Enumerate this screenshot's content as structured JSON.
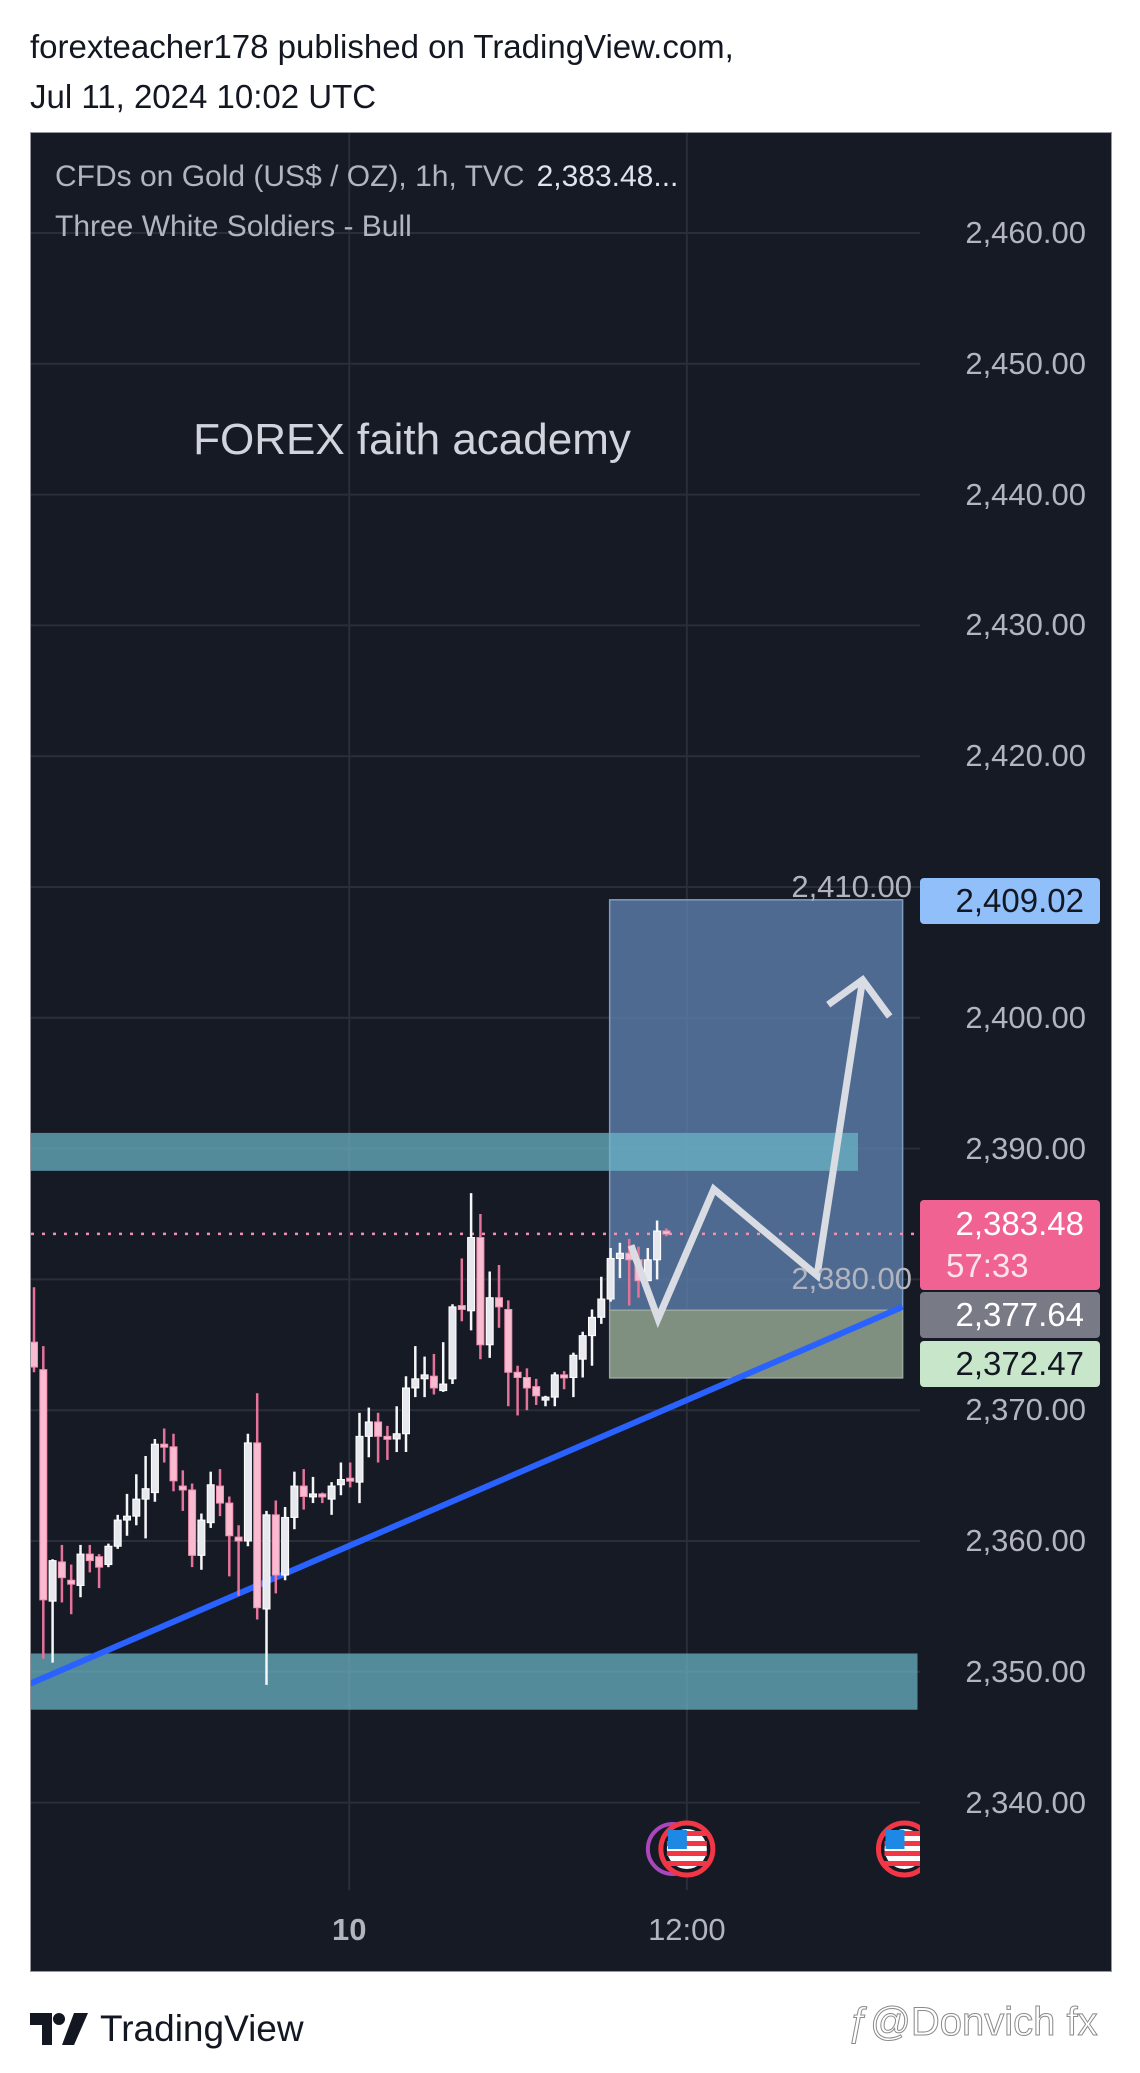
{
  "header": {
    "line1": "forexteacher178 published on TradingView.com,",
    "line2": "Jul 11, 2024 10:02 UTC"
  },
  "legend": {
    "symbol": "CFDs on Gold (US$ / OZ), 1h, TVC",
    "price": "2,383.48...",
    "pattern": "Three White Soldiers - Bull"
  },
  "watermark_text": "FOREX faith academy",
  "price_labels": {
    "target": "2,409.02",
    "last": "2,383.48",
    "countdown": "57:33",
    "entry": "2,377.64",
    "stop": "2,372.47"
  },
  "footer": {
    "brand": "TradingView",
    "credit": "@Donvich fx"
  },
  "colors": {
    "background": "#161a25",
    "up_candle": "#e6e8ee",
    "down_candle": "#f8bbd0",
    "down_wick": "#e57399",
    "trendline": "#2962ff",
    "zone": "#5a9aa3",
    "target_label": "#90bff9",
    "last_label": "#f06292",
    "entry_label": "#787b86",
    "stop_label": "#c8e6c9"
  },
  "chart_data": {
    "type": "candlestick",
    "symbol": "CFDs on Gold (US$ / OZ)",
    "interval": "1h",
    "ylim": [
      2333,
      2468
    ],
    "y_ticks": [
      "2,340.00",
      "2,350.00",
      "2,360.00",
      "2,370.00",
      "2,380.00",
      "2,390.00",
      "2,400.00",
      "2,410.00",
      "2,420.00",
      "2,430.00",
      "2,440.00",
      "2,450.00",
      "2,460.00"
    ],
    "y_tick_values": [
      2340,
      2350,
      2360,
      2370,
      2380,
      2390,
      2400,
      2410,
      2420,
      2430,
      2440,
      2450,
      2460
    ],
    "x_ticks": [
      {
        "label": "10",
        "index": 33.9,
        "bold": true
      },
      {
        "label": "12:00",
        "index": 70.2,
        "bold": false
      }
    ],
    "grid": true,
    "candles_ohlc": [
      [
        2375.2,
        2379.4,
        2372.9,
        2373.3
      ],
      [
        2373.1,
        2374.9,
        2351.0,
        2355.5
      ],
      [
        2355.4,
        2358.6,
        2350.7,
        2358.5
      ],
      [
        2358.4,
        2359.7,
        2355.3,
        2357.2
      ],
      [
        2357.0,
        2358.2,
        2354.4,
        2356.7
      ],
      [
        2356.6,
        2359.7,
        2355.7,
        2359.0
      ],
      [
        2359.0,
        2359.7,
        2357.6,
        2358.5
      ],
      [
        2358.8,
        2359.0,
        2356.4,
        2358.0
      ],
      [
        2358.2,
        2359.8,
        2358.0,
        2359.6
      ],
      [
        2359.6,
        2362.0,
        2359.4,
        2361.6
      ],
      [
        2361.6,
        2363.6,
        2360.4,
        2361.9
      ],
      [
        2361.9,
        2365.1,
        2361.2,
        2363.2
      ],
      [
        2363.2,
        2366.5,
        2360.2,
        2364.0
      ],
      [
        2363.7,
        2367.8,
        2363.0,
        2367.4
      ],
      [
        2367.4,
        2368.6,
        2366.0,
        2367.2
      ],
      [
        2367.2,
        2368.2,
        2363.8,
        2364.6
      ],
      [
        2364.2,
        2365.4,
        2362.3,
        2363.9
      ],
      [
        2363.9,
        2364.4,
        2358.0,
        2358.9
      ],
      [
        2358.9,
        2362.1,
        2357.8,
        2361.6
      ],
      [
        2361.4,
        2365.3,
        2361.0,
        2364.3
      ],
      [
        2364.2,
        2365.5,
        2361.9,
        2362.9
      ],
      [
        2362.9,
        2363.4,
        2357.3,
        2360.4
      ],
      [
        2360.3,
        2361.2,
        2355.8,
        2360.0
      ],
      [
        2360.0,
        2368.2,
        2359.6,
        2367.5
      ],
      [
        2367.5,
        2371.3,
        2354.0,
        2354.9
      ],
      [
        2354.8,
        2362.3,
        2349.0,
        2362.0
      ],
      [
        2362.0,
        2363.1,
        2356.0,
        2357.4
      ],
      [
        2357.4,
        2362.6,
        2357.0,
        2361.8
      ],
      [
        2361.8,
        2365.3,
        2360.9,
        2364.2
      ],
      [
        2364.2,
        2365.5,
        2362.4,
        2363.4
      ],
      [
        2363.4,
        2364.9,
        2362.9,
        2363.6
      ],
      [
        2363.6,
        2363.7,
        2362.9,
        2363.4
      ],
      [
        2363.2,
        2364.5,
        2362.0,
        2364.2
      ],
      [
        2364.3,
        2366.0,
        2363.5,
        2364.7
      ],
      [
        2364.8,
        2366.0,
        2364.1,
        2364.6
      ],
      [
        2364.5,
        2369.8,
        2362.9,
        2368.0
      ],
      [
        2368.0,
        2370.2,
        2366.4,
        2369.1
      ],
      [
        2369.1,
        2369.8,
        2366.0,
        2368.0
      ],
      [
        2368.0,
        2368.8,
        2366.2,
        2367.9
      ],
      [
        2367.8,
        2370.3,
        2366.8,
        2368.2
      ],
      [
        2368.2,
        2372.6,
        2366.8,
        2371.7
      ],
      [
        2371.7,
        2374.9,
        2371.0,
        2372.4
      ],
      [
        2372.4,
        2374.1,
        2371.0,
        2372.7
      ],
      [
        2372.6,
        2374.3,
        2371.2,
        2371.7
      ],
      [
        2371.5,
        2375.2,
        2371.4,
        2372.0
      ],
      [
        2372.4,
        2378.1,
        2372.0,
        2377.9
      ],
      [
        2378.0,
        2381.6,
        2376.8,
        2377.7
      ],
      [
        2377.6,
        2386.6,
        2376.1,
        2383.2
      ],
      [
        2383.2,
        2385.0,
        2373.9,
        2375.0
      ],
      [
        2375.0,
        2380.6,
        2374.0,
        2378.6
      ],
      [
        2378.6,
        2381.1,
        2376.3,
        2377.9
      ],
      [
        2377.7,
        2378.4,
        2370.3,
        2372.9
      ],
      [
        2372.9,
        2373.4,
        2369.6,
        2372.5
      ],
      [
        2372.5,
        2373.2,
        2370.0,
        2371.7
      ],
      [
        2371.8,
        2372.4,
        2370.4,
        2371.1
      ],
      [
        2370.8,
        2371.1,
        2370.3,
        2371.0
      ],
      [
        2371.0,
        2372.9,
        2370.3,
        2372.7
      ],
      [
        2372.7,
        2373.0,
        2371.6,
        2372.5
      ],
      [
        2372.5,
        2374.4,
        2371.0,
        2374.2
      ],
      [
        2373.9,
        2376.0,
        2372.5,
        2375.7
      ],
      [
        2375.7,
        2377.7,
        2373.4,
        2377.1
      ],
      [
        2377.1,
        2380.2,
        2376.6,
        2378.5
      ],
      [
        2378.5,
        2382.4,
        2378.3,
        2381.6
      ],
      [
        2381.6,
        2382.8,
        2380.1,
        2382.0
      ],
      [
        2382.0,
        2383.1,
        2378.0,
        2381.5
      ],
      [
        2381.5,
        2382.5,
        2378.6,
        2379.9
      ],
      [
        2379.9,
        2382.4,
        2380.0,
        2381.5
      ],
      [
        2381.5,
        2384.5,
        2380.0,
        2383.7
      ],
      [
        2383.7,
        2383.9,
        2383.3,
        2383.48
      ]
    ],
    "last_price": 2383.48,
    "drawings": {
      "upper_zone": {
        "from_index": -0.4,
        "to_index": 88.6,
        "top": 2391.2,
        "bottom": 2388.3
      },
      "lower_zone": {
        "from_index": -0.4,
        "to_index": 95,
        "top": 2351.4,
        "bottom": 2347.1
      },
      "long_position": {
        "from_index": 61.9,
        "to_index": 93.4,
        "target": 2409.02,
        "entry": 2377.64,
        "stop": 2372.47
      },
      "trendline": {
        "from": [
          -0.4,
          2349.1
        ],
        "to": [
          93.4,
          2377.9
        ]
      },
      "projection_path": [
        [
          64.2,
          2382.6
        ],
        [
          67.1,
          2377.0
        ],
        [
          73.1,
          2386.9
        ],
        [
          84.2,
          2380.3
        ],
        [
          89.1,
          2402.9
        ]
      ],
      "projection_arrowhead": [
        [
          85.4,
          2401.0
        ],
        [
          89.1,
          2402.9
        ],
        [
          92.0,
          2400.1
        ]
      ]
    },
    "events": [
      {
        "icon": "us-flag",
        "index": 70.2
      },
      {
        "icon": "us-flag",
        "index": 93.6
      }
    ]
  }
}
